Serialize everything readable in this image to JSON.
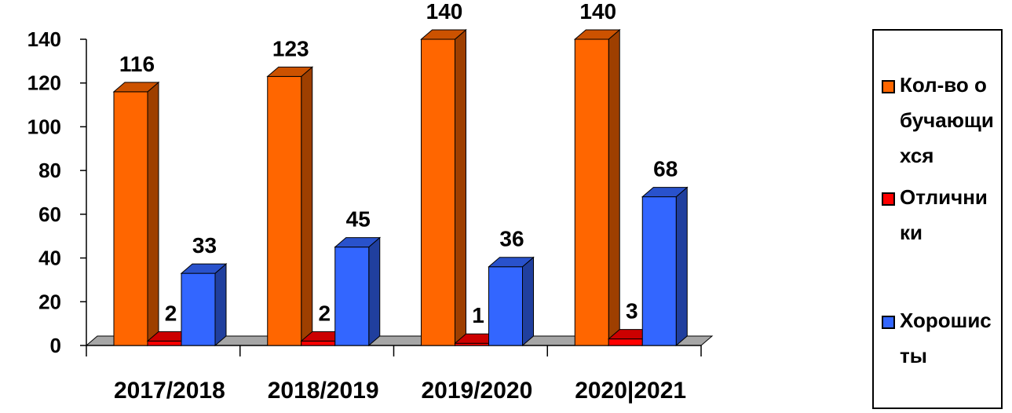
{
  "chart_data": {
    "type": "bar",
    "categories": [
      "2017/2018",
      "2018/2019",
      "2019/2020",
      "2020|2021"
    ],
    "series": [
      {
        "name": "Кол-во обучающихся",
        "values": [
          116,
          123,
          140,
          140
        ],
        "color": "#FF6600"
      },
      {
        "name": "Отличники",
        "values": [
          2,
          2,
          1,
          3
        ],
        "color": "#FF0000"
      },
      {
        "name": "Хорошисты",
        "values": [
          33,
          45,
          36,
          68
        ],
        "color": "#3366FF"
      }
    ],
    "y_ticks": [
      "0",
      "20",
      "40",
      "60",
      "80",
      "100",
      "120",
      "140"
    ],
    "ylim": [
      0,
      140
    ],
    "legend_position": "right",
    "grid": false,
    "style": "3d-column"
  },
  "legend": {
    "items": [
      {
        "label": "Кол-во обучающихся",
        "color": "#FF6600"
      },
      {
        "label": "Отличники",
        "color": "#FF0000"
      },
      {
        "label": "Хорошисты",
        "color": "#3366FF"
      }
    ]
  }
}
